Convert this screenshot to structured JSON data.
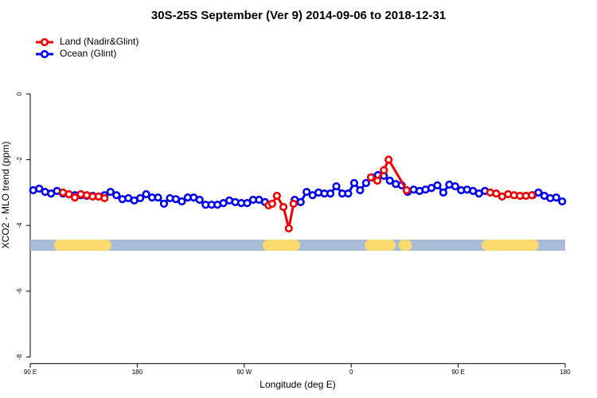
{
  "chart_data": {
    "type": "line",
    "title": "30S-25S September (Ver 9)   2014-09-06 to 2018-12-31",
    "xlabel": "Longitude (deg E)",
    "ylabel": "XCO2 - MLO trend (ppm)",
    "xlim": [
      90,
      540
    ],
    "ylim": [
      -8.2,
      1.9
    ],
    "xticks": [
      {
        "value": 90,
        "label": "90 E"
      },
      180,
      {
        "value": 270,
        "label": "90 W"
      },
      {
        "value": 360,
        "label": "0"
      },
      {
        "value": 450,
        "label": "90 E"
      },
      {
        "value": 540,
        "label": "180"
      }
    ],
    "yticks": [
      0,
      -2,
      -4,
      -6,
      -8
    ],
    "legend": "top-left",
    "surface_strip": {
      "y": -4.6,
      "ocean_color": "#a8bcd8",
      "land_color": "#fbd96e",
      "land_spans": [
        [
          114.8,
          153.6
        ],
        [
          290.2,
          312.3
        ],
        [
          375.9,
          392.7
        ],
        [
          404.5,
          406.5
        ],
        [
          474.4,
          513.2
        ]
      ]
    },
    "series": [
      {
        "name": "Ocean (Glint)",
        "color": "#0000ee",
        "x": [
          92.5,
          97.5,
          102.5,
          107.5,
          112.5,
          117.5,
          122.5,
          127.5,
          132.5,
          137.5,
          142.5,
          147.5,
          152.5,
          157.5,
          162.5,
          167.5,
          172.5,
          177.5,
          182.5,
          187.5,
          192.5,
          197.5,
          202.5,
          207.5,
          212.5,
          217.5,
          222.5,
          227.5,
          232.5,
          237.5,
          242.5,
          247.5,
          252.5,
          257.5,
          262.5,
          267.5,
          272.5,
          277.5,
          282.5,
          287.5,
          292.5,
          297.5,
          302.5,
          307.5,
          312.5,
          317.5,
          322.5,
          327.5,
          332.5,
          337.5,
          342.5,
          347.5,
          352.5,
          357.5,
          362.5,
          367.5,
          372.5,
          377.5,
          382.5,
          387.5,
          392.5,
          397.5,
          402.5,
          407.5,
          412.5,
          417.5,
          422.5,
          427.5,
          432.5,
          437.5,
          442.5,
          447.5,
          452.5,
          457.5,
          462.5,
          467.5,
          472.5,
          477.5,
          482.5,
          487.5,
          492.5,
          497.5,
          502.5,
          507.5,
          512.5,
          517.5,
          522.5,
          527.5,
          532.5,
          537.5
        ],
        "values": [
          -2.93,
          -2.88,
          -2.98,
          -3.03,
          -2.95,
          -3.03,
          -3.05,
          -3.08,
          -3.08,
          -3.1,
          -3.1,
          -3.12,
          -3.08,
          -2.98,
          -3.08,
          -3.2,
          -3.17,
          -3.24,
          -3.17,
          -3.05,
          -3.15,
          -3.15,
          -3.34,
          -3.17,
          -3.2,
          -3.27,
          -3.15,
          -3.15,
          -3.22,
          -3.37,
          -3.37,
          -3.37,
          -3.32,
          -3.24,
          -3.29,
          -3.32,
          -3.32,
          -3.22,
          -3.22,
          -3.29,
          null,
          null,
          null,
          null,
          -3.22,
          -3.29,
          -2.98,
          -3.08,
          -3.0,
          -3.03,
          -3.03,
          -2.81,
          -3.03,
          -3.03,
          -2.71,
          -2.93,
          -2.71,
          -2.54,
          -2.47,
          -2.49,
          -2.64,
          -2.74,
          -2.78,
          -2.98,
          -2.91,
          -2.95,
          -2.91,
          -2.86,
          -2.78,
          -3.0,
          -2.76,
          -2.81,
          -2.93,
          -2.91,
          -2.95,
          -3.03,
          -2.95,
          null,
          null,
          null,
          null,
          null,
          null,
          null,
          -3.08,
          -3.0,
          -3.1,
          -3.17,
          -3.15,
          -3.27
        ]
      },
      {
        "name": "Land (Nadir&Glint)",
        "color": "#ee0000",
        "x": [
          117.5,
          122.5,
          127.5,
          132.5,
          137.5,
          142.5,
          147.5,
          152.5,
          200,
          290.5,
          293.5,
          297.5,
          303,
          307.5,
          311.5,
          350,
          376.6,
          382,
          387.5,
          391.5,
          406.7,
          450,
          477,
          482,
          487,
          492,
          497,
          502,
          507,
          512
        ],
        "values": [
          -3.0,
          -3.05,
          -3.15,
          -3.05,
          -3.08,
          -3.12,
          -3.12,
          -3.17,
          null,
          -3.39,
          -3.34,
          -3.1,
          -3.44,
          -4.09,
          -3.34,
          null,
          -2.54,
          -2.64,
          -2.32,
          -2.0,
          -2.93,
          null,
          -3.0,
          -3.03,
          -3.12,
          -3.05,
          -3.08,
          -3.1,
          -3.1,
          -3.08
        ]
      }
    ]
  }
}
